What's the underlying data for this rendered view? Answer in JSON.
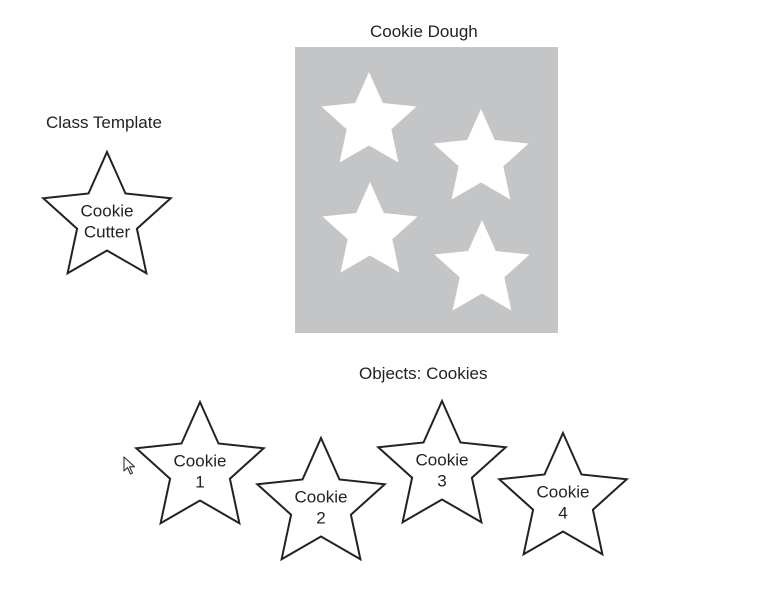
{
  "labels": {
    "class_template": "Class Template",
    "cookie_dough": "Cookie Dough",
    "objects": "Objects: Cookies"
  },
  "template_star": {
    "lines": [
      "Cookie",
      "Cutter"
    ]
  },
  "cookies": [
    {
      "lines": [
        "Cookie",
        "1"
      ]
    },
    {
      "lines": [
        "Cookie",
        "2"
      ]
    },
    {
      "lines": [
        "Cookie",
        "3"
      ]
    },
    {
      "lines": [
        "Cookie",
        "4"
      ]
    }
  ],
  "dough": {
    "cutout_count": 4
  },
  "colors": {
    "dough": "#c4c5c7",
    "cutout": "#ffffff",
    "outline": "#222222",
    "text": "#222222"
  }
}
